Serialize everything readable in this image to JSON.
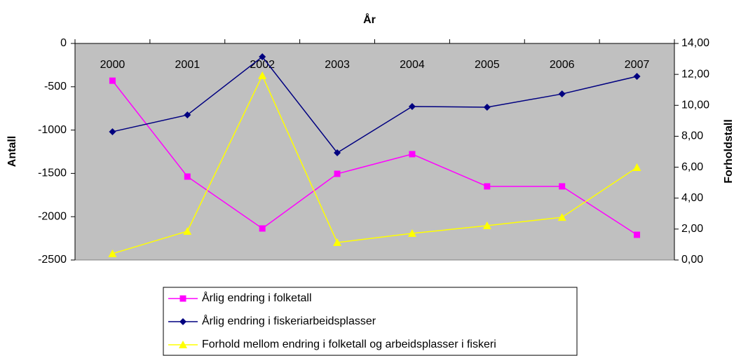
{
  "chart_data": {
    "type": "line",
    "title": "År",
    "y_label": "Antall",
    "y2_label": "Forholdstall",
    "categories": [
      "2000",
      "2001",
      "2002",
      "2003",
      "2004",
      "2005",
      "2006",
      "2007"
    ],
    "series": [
      {
        "name": "Årlig endring i folketall",
        "color": "#ff00ff",
        "marker": "square",
        "values": [
          -430,
          -1537,
          -2136,
          -1505,
          -1278,
          -1650,
          -1650,
          -2209
        ]
      },
      {
        "name": "Årlig endring i fiskeriarbeidsplasser",
        "color": "#000080",
        "marker": "diamond",
        "values": [
          -1019,
          -825,
          -154,
          -1262,
          -728,
          -736,
          -583,
          -380
        ]
      },
      {
        "name": "Forhold mellom endring i folketall og arbeidsplasser i fiskeri",
        "color": "#ffff00",
        "marker": "triangle",
        "axis": "y2",
        "values": [
          0.41,
          1.86,
          11.92,
          1.13,
          1.72,
          2.22,
          2.76,
          5.98
        ]
      }
    ],
    "ylim": [
      0,
      -2500
    ],
    "yticks": [
      0,
      -500,
      -1000,
      -1500,
      -2000,
      -2500
    ],
    "y2lim": [
      14,
      0
    ],
    "y2ticks": [
      {
        "value": 14,
        "label": "14,00"
      },
      {
        "value": 12,
        "label": "12,00"
      },
      {
        "value": 10,
        "label": "10,00"
      },
      {
        "value": 8,
        "label": "8,00"
      },
      {
        "value": 6,
        "label": "6,00"
      },
      {
        "value": 4,
        "label": "4,00"
      },
      {
        "value": 2,
        "label": "2,00"
      },
      {
        "value": 0,
        "label": "0,00"
      }
    ],
    "plot_background": "#c0c0c0"
  }
}
